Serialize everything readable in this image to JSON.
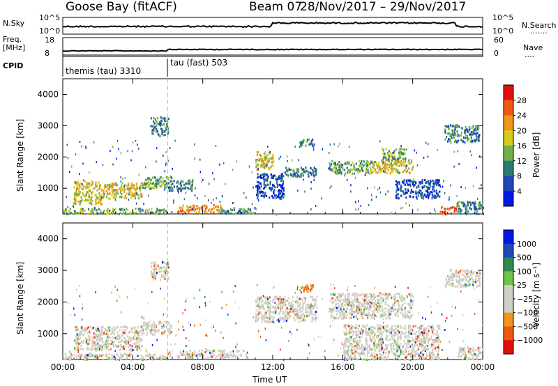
{
  "header": {
    "station": "Goose Bay (fitACF)",
    "beam": "Beam 07",
    "date_range": "28/Nov/2017 – 29/Nov/2017"
  },
  "summary": {
    "nsky_label": "N.Sky",
    "nsearch_label": "N.Search",
    "nsearch_dots": ".......",
    "noise_ticks": [
      "10^5",
      "10^0"
    ],
    "freq_label_line1": "Freq.",
    "freq_label_line2": "[MHz]",
    "freq_ticks": [
      "18",
      "8"
    ],
    "nave_label": "Nave",
    "nave_dots": "....",
    "nave_ticks": [
      "60",
      "0"
    ],
    "cpid_label": "CPID",
    "cpid_segments": [
      {
        "label": "themis (tau) 3310",
        "start_hour": 0,
        "end_hour": 6
      },
      {
        "label": "tau (fast) 503",
        "start_hour": 6,
        "end_hour": 24
      }
    ]
  },
  "chart_data": [
    {
      "type": "heatmap",
      "panel": "power",
      "ylabel": "Slant Range [km]",
      "xlabel": "Time UT",
      "x_range_hours": [
        0,
        24
      ],
      "ylim": [
        180,
        4500
      ],
      "yticks": [
        1000,
        2000,
        3000,
        4000
      ],
      "xticks": [
        "00:00",
        "04:00",
        "08:00",
        "12:00",
        "16:00",
        "20:00",
        "00:00"
      ],
      "colorbar": {
        "label": "Power [dB]",
        "ticks": [
          "4",
          "8",
          "12",
          "16",
          "20",
          "24",
          "28"
        ],
        "colors": [
          "#0018e6",
          "#1f47b8",
          "#2d7a78",
          "#6fb04a",
          "#d7cc1e",
          "#f0961a",
          "#ee5a12",
          "#e01010"
        ]
      },
      "regions": [
        {
          "t0": 0.0,
          "t1": 6.0,
          "r0": 200,
          "r1": 380,
          "level": 3
        },
        {
          "t0": 0.6,
          "t1": 2.2,
          "r0": 500,
          "r1": 1250,
          "level": 4
        },
        {
          "t0": 2.2,
          "t1": 4.5,
          "r0": 700,
          "r1": 1200,
          "level": 4
        },
        {
          "t0": 4.5,
          "t1": 6.2,
          "r0": 1000,
          "r1": 1400,
          "level": 3
        },
        {
          "t0": 5.0,
          "t1": 6.0,
          "r0": 2700,
          "r1": 3300,
          "level": 2
        },
        {
          "t0": 6.0,
          "t1": 7.4,
          "r0": 950,
          "r1": 1300,
          "level": 2
        },
        {
          "t0": 6.5,
          "t1": 9.0,
          "r0": 250,
          "r1": 500,
          "level": 5
        },
        {
          "t0": 9.0,
          "t1": 11.0,
          "r0": 220,
          "r1": 400,
          "level": 2
        },
        {
          "t0": 11.0,
          "t1": 12.0,
          "r0": 1600,
          "r1": 2200,
          "level": 4
        },
        {
          "t0": 11.0,
          "t1": 12.6,
          "r0": 700,
          "r1": 1500,
          "level": 1
        },
        {
          "t0": 12.6,
          "t1": 14.5,
          "r0": 1400,
          "r1": 1700,
          "level": 2
        },
        {
          "t0": 13.5,
          "t1": 14.3,
          "r0": 2350,
          "r1": 2600,
          "level": 2
        },
        {
          "t0": 15.2,
          "t1": 17.8,
          "r0": 1500,
          "r1": 1900,
          "level": 3
        },
        {
          "t0": 17.8,
          "t1": 20.0,
          "r0": 1500,
          "r1": 1950,
          "level": 4
        },
        {
          "t0": 18.2,
          "t1": 19.6,
          "r0": 1950,
          "r1": 2300,
          "level": 3
        },
        {
          "t0": 19.0,
          "t1": 21.5,
          "r0": 700,
          "r1": 1300,
          "level": 1
        },
        {
          "t0": 21.5,
          "t1": 22.5,
          "r0": 200,
          "r1": 450,
          "level": 6
        },
        {
          "t0": 22.5,
          "t1": 24.0,
          "r0": 200,
          "r1": 600,
          "level": 2
        },
        {
          "t0": 21.8,
          "t1": 23.8,
          "r0": 2500,
          "r1": 3050,
          "level": 2
        }
      ]
    },
    {
      "type": "heatmap",
      "panel": "velocity",
      "ylabel": "Slant Range [km]",
      "xlabel": "Time UT",
      "x_range_hours": [
        0,
        24
      ],
      "ylim": [
        180,
        4500
      ],
      "yticks": [
        1000,
        2000,
        3000,
        4000
      ],
      "xticks": [
        "00:00",
        "04:00",
        "08:00",
        "12:00",
        "16:00",
        "20:00",
        "00:00"
      ],
      "colorbar": {
        "label": "Velocity [m s⁻¹]",
        "ticks": [
          "1000",
          "500",
          "100",
          "25",
          "−25",
          "−100",
          "−500",
          "−1000"
        ],
        "colors": [
          "#e01010",
          "#ee5a12",
          "#f0961a",
          "#d0d0c8",
          "#d0d0c8",
          "#6fc24a",
          "#2d8a50",
          "#1f47b8",
          "#0018e6"
        ]
      },
      "regions": [
        {
          "t0": 0.0,
          "t1": 6.2,
          "r0": 200,
          "r1": 400,
          "level": 3
        },
        {
          "t0": 0.6,
          "t1": 4.5,
          "r0": 500,
          "r1": 1250,
          "level": 3
        },
        {
          "t0": 4.5,
          "t1": 6.2,
          "r0": 1000,
          "r1": 1400,
          "level": 3
        },
        {
          "t0": 5.0,
          "t1": 6.0,
          "r0": 2700,
          "r1": 3300,
          "level": 3
        },
        {
          "t0": 6.5,
          "t1": 10.5,
          "r0": 250,
          "r1": 500,
          "level": 3
        },
        {
          "t0": 11.0,
          "t1": 14.5,
          "r0": 1400,
          "r1": 2200,
          "level": 3
        },
        {
          "t0": 13.5,
          "t1": 14.3,
          "r0": 2350,
          "r1": 2600,
          "level": 6
        },
        {
          "t0": 15.2,
          "t1": 20.0,
          "r0": 1500,
          "r1": 2300,
          "level": 3
        },
        {
          "t0": 16.0,
          "t1": 21.5,
          "r0": 200,
          "r1": 1300,
          "level": 3
        },
        {
          "t0": 22.5,
          "t1": 24.0,
          "r0": 200,
          "r1": 600,
          "level": 3
        },
        {
          "t0": 21.8,
          "t1": 23.8,
          "r0": 2500,
          "r1": 3050,
          "level": 3
        }
      ]
    }
  ]
}
